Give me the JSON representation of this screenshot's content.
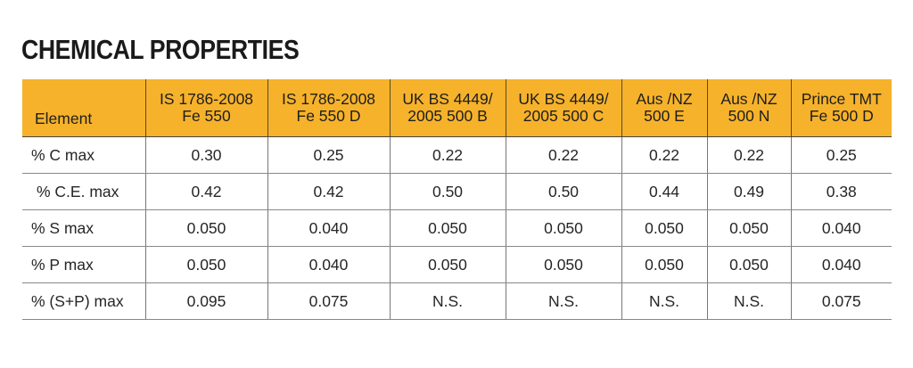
{
  "title": "CHEMICAL PROPERTIES",
  "table": {
    "headers": [
      {
        "line1": "Element",
        "line2": ""
      },
      {
        "line1": "IS 1786-2008",
        "line2": "Fe 550"
      },
      {
        "line1": "IS 1786-2008",
        "line2": "Fe 550 D"
      },
      {
        "line1": "UK BS 4449/",
        "line2": "2005 500 B"
      },
      {
        "line1": "UK BS 4449/",
        "line2": "2005 500 C"
      },
      {
        "line1": "Aus /NZ",
        "line2": "500 E"
      },
      {
        "line1": "Aus /NZ",
        "line2": "500 N"
      },
      {
        "line1": "Prince TMT",
        "line2": "Fe 500 D"
      }
    ],
    "rows": [
      {
        "cells": [
          "% C max",
          "0.30",
          "0.25",
          "0.22",
          "0.22",
          "0.22",
          "0.22",
          "0.25"
        ]
      },
      {
        "cells": [
          "% C.E. max",
          "0.42",
          "0.42",
          "0.50",
          "0.50",
          "0.44",
          "0.49",
          "0.38"
        ]
      },
      {
        "cells": [
          "% S max",
          "0.050",
          "0.040",
          "0.050",
          "0.050",
          "0.050",
          "0.050",
          "0.040"
        ]
      },
      {
        "cells": [
          "% P max",
          "0.050",
          "0.040",
          "0.050",
          "0.050",
          "0.050",
          "0.050",
          "0.040"
        ]
      },
      {
        "cells": [
          "% (S+P) max",
          "0.095",
          "0.075",
          "N.S.",
          "N.S.",
          "N.S.",
          "N.S.",
          "0.075"
        ]
      }
    ]
  },
  "colors": {
    "header_background": "#f6b22b",
    "text": "#222222",
    "rule": "#888888"
  }
}
